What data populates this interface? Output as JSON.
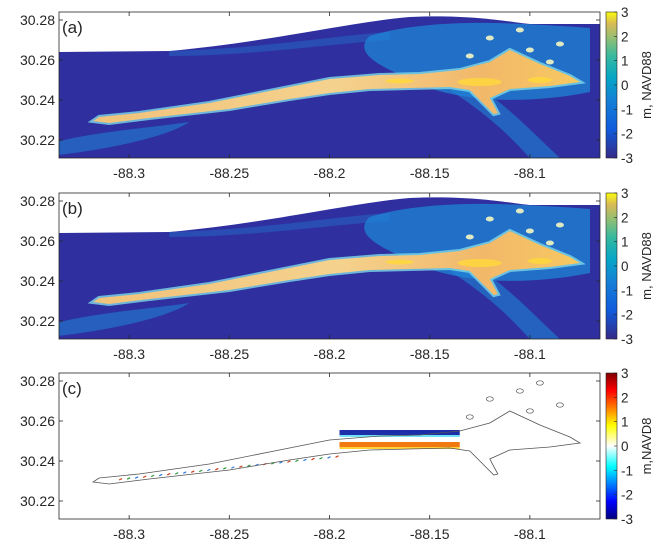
{
  "chart_data": [
    {
      "type": "heatmap",
      "panel_label": "(a)",
      "xticks": [
        -88.3,
        -88.25,
        -88.2,
        -88.15,
        -88.1
      ],
      "xtick_labels": [
        "-88.3",
        "-88.25",
        "-88.2",
        "-88.15",
        "-88.1"
      ],
      "yticks": [
        30.22,
        30.24,
        30.26,
        30.28
      ],
      "ytick_labels": [
        "30.22",
        "30.24",
        "30.26",
        "30.28"
      ],
      "xlim": [
        -88.335,
        -88.065
      ],
      "ylim": [
        30.211,
        30.284
      ],
      "colorbar": {
        "label": "m, NAVD88",
        "ticks": [
          3,
          2,
          1,
          0,
          -1,
          -2,
          -3
        ],
        "tick_labels": [
          "3",
          "2",
          "1",
          "0",
          "-1",
          "-2",
          "-3"
        ],
        "range": [
          -3,
          3
        ],
        "colormap": "parula"
      },
      "colors": {
        "water": "#2f2fa0",
        "sand": "#f2bc70",
        "shallow": "#1f86d6",
        "highland": "#ffd93a"
      }
    },
    {
      "type": "heatmap",
      "panel_label": "(b)",
      "xticks": [
        -88.3,
        -88.25,
        -88.2,
        -88.15,
        -88.1
      ],
      "xtick_labels": [
        "-88.3",
        "-88.25",
        "-88.2",
        "-88.15",
        "-88.1"
      ],
      "yticks": [
        30.22,
        30.24,
        30.26,
        30.28
      ],
      "ytick_labels": [
        "30.22",
        "30.24",
        "30.26",
        "30.28"
      ],
      "xlim": [
        -88.335,
        -88.065
      ],
      "ylim": [
        30.211,
        30.284
      ],
      "colorbar": {
        "label": "m, NAVD88",
        "ticks": [
          3,
          2,
          1,
          0,
          -1,
          -2,
          -3
        ],
        "tick_labels": [
          "3",
          "2",
          "1",
          "0",
          "-1",
          "-2",
          "-3"
        ],
        "range": [
          -3,
          3
        ],
        "colormap": "parula"
      },
      "colors": {
        "water": "#2f2fa0",
        "sand": "#f2bc70",
        "shallow": "#1f86d6",
        "highland": "#ffd93a"
      }
    },
    {
      "type": "heatmap",
      "panel_label": "(c)",
      "xticks": [
        -88.3,
        -88.25,
        -88.2,
        -88.15,
        -88.1
      ],
      "xtick_labels": [
        "-88.3",
        "-88.25",
        "-88.2",
        "-88.15",
        "-88.1"
      ],
      "yticks": [
        30.22,
        30.24,
        30.26,
        30.28
      ],
      "ytick_labels": [
        "30.22",
        "30.24",
        "30.26",
        "30.28"
      ],
      "xlim": [
        -88.335,
        -88.065
      ],
      "ylim": [
        30.211,
        30.284
      ],
      "colorbar": {
        "label": "m,NAVD8",
        "ticks": [
          3,
          2,
          1,
          0,
          -1,
          -2,
          -3
        ],
        "tick_labels": [
          "3",
          "2",
          "1",
          "0",
          "-1",
          "-2",
          "-3"
        ],
        "range": [
          -3,
          3
        ],
        "colormap": "jet"
      },
      "difference_band": {
        "x_range": [
          -88.195,
          -88.135
        ],
        "y_upper": 30.254,
        "y_lower": 30.249,
        "upper_value": -2.5,
        "lower_value": 1.5
      },
      "colors": {
        "outline": "#555555",
        "erosion": "#1c2fa8",
        "deposition": "#f07a10"
      }
    }
  ]
}
